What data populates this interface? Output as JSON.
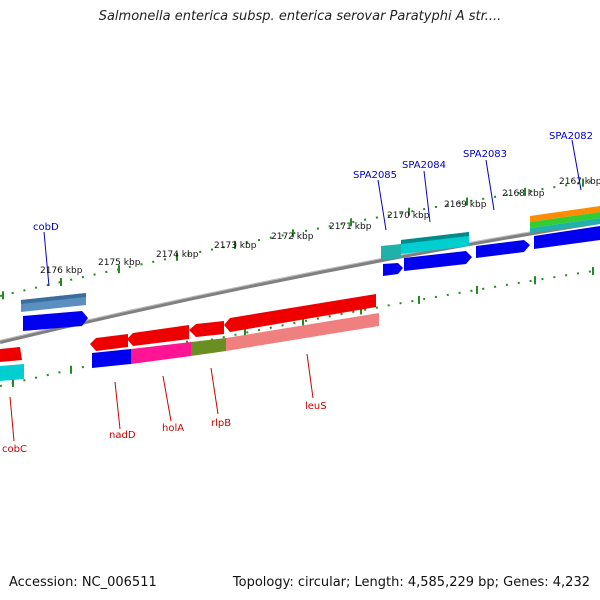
{
  "header": {
    "title": "Salmonella enterica subsp. enterica serovar Paratyphi A str...."
  },
  "footer": {
    "accession": "Accession: NC_006511",
    "topology": "Topology: circular; Length: 4,585,229 bp; Genes: 4,232"
  },
  "colors": {
    "backbone": "#808080",
    "ticks": "#228B22",
    "gene_label_top": "#0000CC",
    "gene_label_bottom": "#CC0000",
    "tick_label": "#111111"
  },
  "scale_ticks": [
    "2176 kbp",
    "2175 kbp",
    "2174 kbp",
    "2173 kbp",
    "2172 kbp",
    "2171 kbp",
    "2170 kbp",
    "2169 kbp",
    "2168 kbp",
    "2167 kbp"
  ],
  "genes_top": [
    "cobD",
    "SPA2085",
    "SPA2084",
    "SPA2083",
    "SPA2082"
  ],
  "genes_bottom": [
    "cobC",
    "nadD",
    "holA",
    "rlpB",
    "leuS"
  ]
}
